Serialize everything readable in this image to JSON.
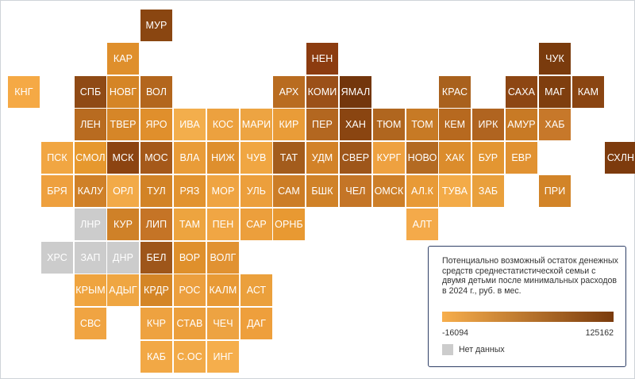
{
  "legend": {
    "title": "Потенциально возможный остаток денежных средств среднестатистической семьи с двумя детьми после минимальных расходов в 2024 г., руб. в мес.",
    "min_label": "-16094",
    "max_label": "125162",
    "no_data_label": "Нет данных",
    "color_min": "#f7ae4c",
    "color_max": "#7a3b0d",
    "no_data_color": "#cccccc"
  },
  "regions": [
    {
      "code": "МУР",
      "col": 4,
      "row": 0,
      "color": "#8a4611"
    },
    {
      "code": "КАР",
      "col": 3,
      "row": 1,
      "color": "#df8f2c"
    },
    {
      "code": "НЕН",
      "col": 9,
      "row": 1,
      "color": "#8c3c10"
    },
    {
      "code": "ЧУК",
      "col": 16,
      "row": 1,
      "color": "#7a3b0d"
    },
    {
      "code": "КНГ",
      "col": 0,
      "row": 2,
      "color": "#f5a945"
    },
    {
      "code": "СПБ",
      "col": 2,
      "row": 2,
      "color": "#8f4a15"
    },
    {
      "code": "НОВГ",
      "col": 3,
      "row": 2,
      "color": "#d58526"
    },
    {
      "code": "ВОЛ",
      "col": 4,
      "row": 2,
      "color": "#b3661d"
    },
    {
      "code": "АРХ",
      "col": 8,
      "row": 2,
      "color": "#b96c20"
    },
    {
      "code": "КОМИ",
      "col": 9,
      "row": 2,
      "color": "#9b5018"
    },
    {
      "code": "ЯМАЛ",
      "col": 10,
      "row": 2,
      "color": "#73360c"
    },
    {
      "code": "КРАС",
      "col": 13,
      "row": 2,
      "color": "#a9611d"
    },
    {
      "code": "САХА",
      "col": 15,
      "row": 2,
      "color": "#8d4613"
    },
    {
      "code": "МАГ",
      "col": 16,
      "row": 2,
      "color": "#7f3e0e"
    },
    {
      "code": "КАМ",
      "col": 17,
      "row": 2,
      "color": "#8a4512"
    },
    {
      "code": "ЛЕН",
      "col": 2,
      "row": 3,
      "color": "#b86b20"
    },
    {
      "code": "ТВЕР",
      "col": 3,
      "row": 3,
      "color": "#d68628"
    },
    {
      "code": "ЯРО",
      "col": 4,
      "row": 3,
      "color": "#e08f2c"
    },
    {
      "code": "ИВА",
      "col": 5,
      "row": 3,
      "color": "#f3ae4c"
    },
    {
      "code": "КОС",
      "col": 6,
      "row": 3,
      "color": "#eca13f"
    },
    {
      "code": "МАРИ",
      "col": 7,
      "row": 3,
      "color": "#eda442"
    },
    {
      "code": "КИР",
      "col": 8,
      "row": 3,
      "color": "#e99c38"
    },
    {
      "code": "ПЕР",
      "col": 9,
      "row": 3,
      "color": "#b36720"
    },
    {
      "code": "ХАН",
      "col": 10,
      "row": 3,
      "color": "#8a4511"
    },
    {
      "code": "ТЮМ",
      "col": 11,
      "row": 3,
      "color": "#b0661f"
    },
    {
      "code": "ТОМ",
      "col": 12,
      "row": 3,
      "color": "#c77a25"
    },
    {
      "code": "КЕМ",
      "col": 13,
      "row": 3,
      "color": "#b7691f"
    },
    {
      "code": "ИРК",
      "col": 14,
      "row": 3,
      "color": "#b06420"
    },
    {
      "code": "АМУР",
      "col": 15,
      "row": 3,
      "color": "#c87a25"
    },
    {
      "code": "ХАБ",
      "col": 16,
      "row": 3,
      "color": "#c7782a"
    },
    {
      "code": "ПСК",
      "col": 1,
      "row": 4,
      "color": "#f1a642"
    },
    {
      "code": "СМОЛ",
      "col": 2,
      "row": 4,
      "color": "#e6982e"
    },
    {
      "code": "МСК",
      "col": 3,
      "row": 4,
      "color": "#8c4411"
    },
    {
      "code": "МОС",
      "col": 4,
      "row": 4,
      "color": "#a5591a"
    },
    {
      "code": "ВЛА",
      "col": 5,
      "row": 4,
      "color": "#e99c38"
    },
    {
      "code": "НИЖ",
      "col": 6,
      "row": 4,
      "color": "#de8f2e"
    },
    {
      "code": "ЧУВ",
      "col": 7,
      "row": 4,
      "color": "#f0a642"
    },
    {
      "code": "ТАТ",
      "col": 8,
      "row": 4,
      "color": "#a35c1c"
    },
    {
      "code": "УДМ",
      "col": 9,
      "row": 4,
      "color": "#d28228"
    },
    {
      "code": "СВЕР",
      "col": 10,
      "row": 4,
      "color": "#9e561a"
    },
    {
      "code": "КУРГ",
      "col": 11,
      "row": 4,
      "color": "#eea140"
    },
    {
      "code": "НОВО",
      "col": 12,
      "row": 4,
      "color": "#b36a22"
    },
    {
      "code": "ХАК",
      "col": 13,
      "row": 4,
      "color": "#db8c2c"
    },
    {
      "code": "БУР",
      "col": 14,
      "row": 4,
      "color": "#e39632"
    },
    {
      "code": "ЕВР",
      "col": 15,
      "row": 4,
      "color": "#e19232"
    },
    {
      "code": "СХЛН",
      "col": 18,
      "row": 4,
      "color": "#7d3b0d"
    },
    {
      "code": "БРЯ",
      "col": 1,
      "row": 5,
      "color": "#eea03e"
    },
    {
      "code": "КАЛУ",
      "col": 2,
      "row": 5,
      "color": "#cf8028"
    },
    {
      "code": "ОРЛ",
      "col": 3,
      "row": 5,
      "color": "#f2aa48"
    },
    {
      "code": "ТУЛ",
      "col": 4,
      "row": 5,
      "color": "#d28326"
    },
    {
      "code": "РЯЗ",
      "col": 5,
      "row": 5,
      "color": "#e2932f"
    },
    {
      "code": "МОР",
      "col": 6,
      "row": 5,
      "color": "#efa442"
    },
    {
      "code": "УЛЬ",
      "col": 7,
      "row": 5,
      "color": "#ec9f3c"
    },
    {
      "code": "САМ",
      "col": 8,
      "row": 5,
      "color": "#cc7d26"
    },
    {
      "code": "БШК",
      "col": 9,
      "row": 5,
      "color": "#d08228"
    },
    {
      "code": "ЧЕЛ",
      "col": 10,
      "row": 5,
      "color": "#c47527"
    },
    {
      "code": "ОМСК",
      "col": 11,
      "row": 5,
      "color": "#cd7f29"
    },
    {
      "code": "АЛ.К",
      "col": 12,
      "row": 5,
      "color": "#e89a36"
    },
    {
      "code": "ТУВА",
      "col": 13,
      "row": 5,
      "color": "#f3ab48"
    },
    {
      "code": "ЗАБ",
      "col": 14,
      "row": 5,
      "color": "#e9a03c"
    },
    {
      "code": "ПРИ",
      "col": 16,
      "row": 5,
      "color": "#d28428"
    },
    {
      "code": "ЛНР",
      "col": 2,
      "row": 6,
      "color": "#cccccc"
    },
    {
      "code": "КУР",
      "col": 3,
      "row": 6,
      "color": "#cf8128"
    },
    {
      "code": "ЛИП",
      "col": 4,
      "row": 6,
      "color": "#c57426"
    },
    {
      "code": "ТАМ",
      "col": 5,
      "row": 6,
      "color": "#eda43f"
    },
    {
      "code": "ПЕН",
      "col": 6,
      "row": 6,
      "color": "#f0a644"
    },
    {
      "code": "САР",
      "col": 7,
      "row": 6,
      "color": "#ec9f3c"
    },
    {
      "code": "ОРНБ",
      "col": 8,
      "row": 6,
      "color": "#e89932"
    },
    {
      "code": "АЛТ",
      "col": 12,
      "row": 6,
      "color": "#f4aa4a"
    },
    {
      "code": "ХРС",
      "col": 1,
      "row": 7,
      "color": "#cccccc"
    },
    {
      "code": "ЗАП",
      "col": 2,
      "row": 7,
      "color": "#cccccc"
    },
    {
      "code": "ДНР",
      "col": 3,
      "row": 7,
      "color": "#cccccc"
    },
    {
      "code": "БЕЛ",
      "col": 4,
      "row": 7,
      "color": "#9e561a"
    },
    {
      "code": "ВОР",
      "col": 5,
      "row": 7,
      "color": "#df902c"
    },
    {
      "code": "ВОЛГ",
      "col": 6,
      "row": 7,
      "color": "#e19232"
    },
    {
      "code": "КРЫМ",
      "col": 2,
      "row": 8,
      "color": "#efa43f"
    },
    {
      "code": "АДЫГ",
      "col": 3,
      "row": 8,
      "color": "#efa642"
    },
    {
      "code": "КРДР",
      "col": 4,
      "row": 8,
      "color": "#d48526"
    },
    {
      "code": "РОС",
      "col": 5,
      "row": 8,
      "color": "#ec9f3e"
    },
    {
      "code": "КАЛМ",
      "col": 6,
      "row": 8,
      "color": "#e89a36"
    },
    {
      "code": "АСТ",
      "col": 7,
      "row": 8,
      "color": "#eba03c"
    },
    {
      "code": "СВС",
      "col": 2,
      "row": 9,
      "color": "#f0a442"
    },
    {
      "code": "КЧР",
      "col": 4,
      "row": 9,
      "color": "#eea240"
    },
    {
      "code": "СТАВ",
      "col": 5,
      "row": 9,
      "color": "#ec9f3c"
    },
    {
      "code": "ЧЕЧ",
      "col": 6,
      "row": 9,
      "color": "#eda342"
    },
    {
      "code": "ДАГ",
      "col": 7,
      "row": 9,
      "color": "#ee9f3c"
    },
    {
      "code": "КАБ",
      "col": 4,
      "row": 10,
      "color": "#f2a845"
    },
    {
      "code": "С.ОС",
      "col": 5,
      "row": 10,
      "color": "#f2aa48"
    },
    {
      "code": "ИНГ",
      "col": 6,
      "row": 10,
      "color": "#f5ae4c"
    }
  ]
}
